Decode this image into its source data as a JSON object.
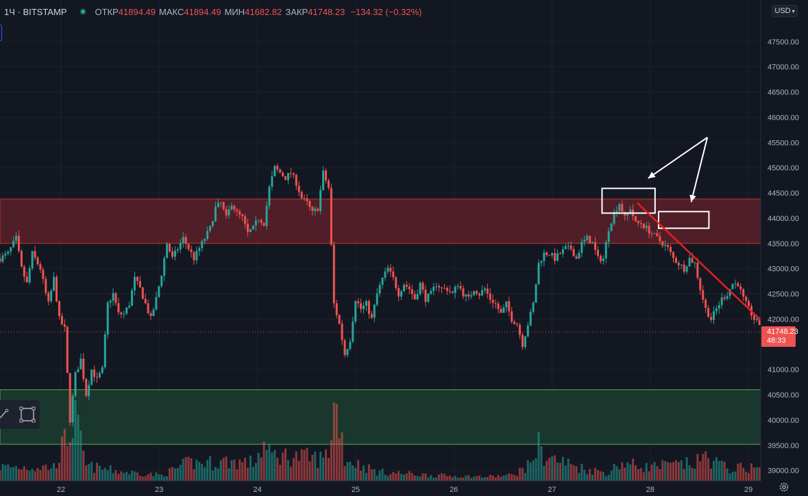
{
  "header": {
    "symbol": "1Ч · BITSTAMP",
    "open_label": "ОТКР",
    "open": "41894.49",
    "high_label": "МАКС",
    "high": "41894.49",
    "low_label": "МИН",
    "low": "41682.82",
    "close_label": "ЗАКР",
    "close": "41748.23",
    "change": "−134.32 (−0.32%)"
  },
  "currency": "USD",
  "price_tag": {
    "price": "41748.23",
    "countdown": "48:33"
  },
  "icons": {
    "toolbar": [
      "trendline-icon",
      "rectangle-icon"
    ],
    "settings": "gear-icon"
  },
  "colors": {
    "up": "#26a69a",
    "down": "#ef5350",
    "resistance_zone": "#5c2029",
    "support_zone": "#1b3b2d",
    "annotation_arrow_red": "#e91e1e",
    "annotation_white": "#ffffff"
  },
  "chart_data": {
    "type": "candlestick",
    "timeframe": "1Ч",
    "y_ticks": [
      "45500.00",
      "45000.00",
      "44500.00",
      "44000.00",
      "43500.00",
      "43000.00",
      "42500.00",
      "42000.00",
      "41000.00",
      "40500.00",
      "40000.00",
      "39500.00",
      "39000.00",
      "47500.00",
      "47000.00",
      "46500.00",
      "46000.00"
    ],
    "x_ticks": [
      "22",
      "23",
      "24",
      "25",
      "26",
      "27",
      "28",
      "29"
    ],
    "ylim": [
      38900,
      47900
    ],
    "last_price": 41748.23,
    "zones": [
      {
        "name": "resistance",
        "from": 43500,
        "to": 44380
      },
      {
        "name": "support",
        "from": 39520,
        "to": 40600
      }
    ],
    "path": [
      [
        0,
        43200
      ],
      [
        3,
        43300
      ],
      [
        6,
        43600
      ],
      [
        8,
        43000
      ],
      [
        10,
        42700
      ],
      [
        12,
        43300
      ],
      [
        15,
        43000
      ],
      [
        17,
        42500
      ],
      [
        18,
        42300
      ],
      [
        20,
        42800
      ],
      [
        22,
        42000
      ],
      [
        24,
        41800
      ],
      [
        26,
        40000
      ],
      [
        28,
        40900
      ],
      [
        30,
        41200
      ],
      [
        32,
        40500
      ],
      [
        34,
        41000
      ],
      [
        36,
        40800
      ],
      [
        38,
        41000
      ],
      [
        40,
        42300
      ],
      [
        42,
        42500
      ],
      [
        44,
        42100
      ],
      [
        46,
        42100
      ],
      [
        48,
        42300
      ],
      [
        50,
        42800
      ],
      [
        52,
        42600
      ],
      [
        54,
        42300
      ],
      [
        56,
        42000
      ],
      [
        58,
        42400
      ],
      [
        60,
        42900
      ],
      [
        62,
        43500
      ],
      [
        64,
        43200
      ],
      [
        66,
        43400
      ],
      [
        68,
        43600
      ],
      [
        70,
        43400
      ],
      [
        72,
        43200
      ],
      [
        74,
        43400
      ],
      [
        76,
        43600
      ],
      [
        78,
        43800
      ],
      [
        80,
        44200
      ],
      [
        82,
        44300
      ],
      [
        84,
        44000
      ],
      [
        86,
        44300
      ],
      [
        88,
        44100
      ],
      [
        90,
        44000
      ],
      [
        92,
        43700
      ],
      [
        94,
        43800
      ],
      [
        96,
        44000
      ],
      [
        98,
        43900
      ],
      [
        100,
        44600
      ],
      [
        102,
        45000
      ],
      [
        104,
        44900
      ],
      [
        106,
        44800
      ],
      [
        108,
        44900
      ],
      [
        110,
        44700
      ],
      [
        112,
        44400
      ],
      [
        114,
        44300
      ],
      [
        116,
        44100
      ],
      [
        118,
        44200
      ],
      [
        120,
        44900
      ],
      [
        122,
        44600
      ],
      [
        124,
        42300
      ],
      [
        126,
        41900
      ],
      [
        128,
        41300
      ],
      [
        130,
        41600
      ],
      [
        132,
        42400
      ],
      [
        134,
        42200
      ],
      [
        136,
        42300
      ],
      [
        138,
        42000
      ],
      [
        140,
        42500
      ],
      [
        142,
        42800
      ],
      [
        144,
        43000
      ],
      [
        146,
        42800
      ],
      [
        148,
        42500
      ],
      [
        150,
        42700
      ],
      [
        152,
        42600
      ],
      [
        154,
        42400
      ],
      [
        156,
        42700
      ],
      [
        158,
        42400
      ],
      [
        160,
        42500
      ],
      [
        162,
        42700
      ],
      [
        164,
        42600
      ],
      [
        166,
        42600
      ],
      [
        168,
        42500
      ],
      [
        170,
        42700
      ],
      [
        172,
        42500
      ],
      [
        174,
        42400
      ],
      [
        176,
        42600
      ],
      [
        178,
        42500
      ],
      [
        180,
        42600
      ],
      [
        182,
        42400
      ],
      [
        184,
        42300
      ],
      [
        186,
        42100
      ],
      [
        188,
        42300
      ],
      [
        190,
        42000
      ],
      [
        192,
        41900
      ],
      [
        194,
        41500
      ],
      [
        196,
        41900
      ],
      [
        198,
        42300
      ],
      [
        200,
        43100
      ],
      [
        202,
        43300
      ],
      [
        204,
        43300
      ],
      [
        206,
        43200
      ],
      [
        208,
        43300
      ],
      [
        210,
        43400
      ],
      [
        212,
        43400
      ],
      [
        214,
        43200
      ],
      [
        216,
        43500
      ],
      [
        218,
        43600
      ],
      [
        220,
        43500
      ],
      [
        222,
        43200
      ],
      [
        224,
        43200
      ],
      [
        226,
        43800
      ],
      [
        228,
        44100
      ],
      [
        230,
        44300
      ],
      [
        232,
        44000
      ],
      [
        234,
        44200
      ],
      [
        236,
        43900
      ],
      [
        238,
        43900
      ],
      [
        240,
        43800
      ],
      [
        242,
        43700
      ],
      [
        244,
        43600
      ],
      [
        246,
        43500
      ],
      [
        248,
        43400
      ],
      [
        250,
        43200
      ],
      [
        252,
        43100
      ],
      [
        254,
        43000
      ],
      [
        256,
        43200
      ],
      [
        258,
        43100
      ],
      [
        260,
        42600
      ],
      [
        262,
        42200
      ],
      [
        264,
        42000
      ],
      [
        266,
        42200
      ],
      [
        268,
        42400
      ],
      [
        270,
        42500
      ],
      [
        272,
        42700
      ],
      [
        274,
        42700
      ],
      [
        276,
        42400
      ],
      [
        278,
        42200
      ],
      [
        280,
        42000
      ],
      [
        282,
        41900
      ],
      [
        284,
        41748
      ]
    ],
    "volume_path": [
      [
        0,
        0.17
      ],
      [
        20,
        0.17
      ],
      [
        26,
        0.62
      ],
      [
        28,
        0.73
      ],
      [
        32,
        0.18
      ],
      [
        46,
        0.11
      ],
      [
        60,
        0.07
      ],
      [
        70,
        0.22
      ],
      [
        78,
        0.22
      ],
      [
        84,
        0.24
      ],
      [
        94,
        0.22
      ],
      [
        98,
        0.43
      ],
      [
        100,
        0.32
      ],
      [
        120,
        0.27
      ],
      [
        122,
        0.36
      ],
      [
        124,
        0.9
      ],
      [
        126,
        0.78
      ],
      [
        128,
        0.27
      ],
      [
        140,
        0.11
      ],
      [
        160,
        0.07
      ],
      [
        180,
        0.05
      ],
      [
        190,
        0.07
      ],
      [
        196,
        0.18
      ],
      [
        200,
        0.43
      ],
      [
        202,
        0.3
      ],
      [
        218,
        0.14
      ],
      [
        226,
        0.1
      ],
      [
        230,
        0.22
      ],
      [
        240,
        0.17
      ],
      [
        258,
        0.21
      ],
      [
        262,
        0.3
      ],
      [
        270,
        0.15
      ],
      [
        284,
        0.17
      ]
    ]
  },
  "annotations": {
    "white_boxes": [
      {
        "x0": 222,
        "x1": 231,
        "y0": 44100,
        "y1": 44590
      },
      {
        "x0": 243,
        "x1": 251,
        "y0": 43800,
        "y1": 44130
      }
    ],
    "white_arrows": [
      {
        "from": [
          255,
          45600
        ],
        "to": [
          233,
          44790
        ]
      },
      {
        "from": [
          255,
          45600
        ],
        "to": [
          249,
          44320
        ]
      }
    ],
    "red_arrow": {
      "from": [
        229,
        44300
      ],
      "to": [
        288,
        41310
      ]
    }
  }
}
